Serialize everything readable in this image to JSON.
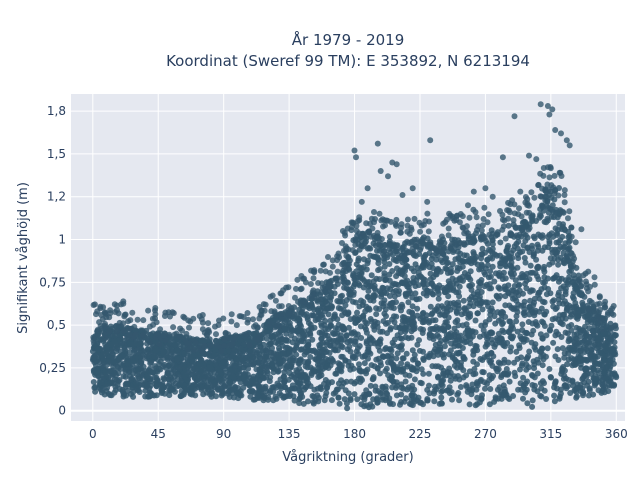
{
  "chart_data": {
    "type": "scatter",
    "title_line1": "År 1979 - 2019",
    "title_line2": "Koordinat (Sweref 99 TM): E 353892, N 6213194",
    "xlabel": "Vågriktning (grader)",
    "ylabel": "Signifikant våghöjd (m)",
    "xlim": [
      -15,
      366
    ],
    "ylim": [
      -0.06,
      1.85
    ],
    "x_ticks": [
      0,
      45,
      90,
      135,
      180,
      225,
      270,
      315,
      360
    ],
    "x_tick_labels": [
      "0",
      "45",
      "90",
      "135",
      "180",
      "225",
      "270",
      "315",
      "360"
    ],
    "y_ticks": [
      0,
      0.25,
      0.5,
      0.75,
      1.0,
      1.25,
      1.5,
      1.75
    ],
    "y_tick_labels": [
      "0",
      "0,25",
      "0,5",
      "0,75",
      "1",
      "1,2",
      "1,5",
      "1,8"
    ],
    "grid": true,
    "point_color": "#34586e",
    "plot_bg": "#e5e8f0",
    "envelope": {
      "x": [
        0,
        20,
        45,
        70,
        90,
        110,
        130,
        150,
        165,
        175,
        180,
        190,
        200,
        215,
        225,
        240,
        255,
        270,
        285,
        300,
        310,
        315,
        320,
        325,
        330,
        340,
        350,
        360
      ],
      "upper": [
        0.48,
        0.5,
        0.46,
        0.42,
        0.42,
        0.46,
        0.58,
        0.68,
        0.78,
        0.92,
        1.02,
        1.05,
        1.0,
        0.98,
        1.02,
        1.0,
        1.02,
        1.05,
        1.08,
        1.12,
        1.28,
        1.35,
        1.32,
        1.18,
        0.9,
        0.68,
        0.55,
        0.5
      ],
      "lower": [
        0.1,
        0.08,
        0.08,
        0.08,
        0.08,
        0.06,
        0.05,
        0.03,
        0.02,
        0.01,
        0.01,
        0.01,
        0.02,
        0.03,
        0.03,
        0.03,
        0.03,
        0.03,
        0.02,
        0.02,
        0.03,
        0.03,
        0.04,
        0.05,
        0.06,
        0.08,
        0.1,
        0.12
      ]
    },
    "outliers": [
      {
        "x": 3,
        "y": 0.58
      },
      {
        "x": 12,
        "y": 0.57
      },
      {
        "x": 22,
        "y": 0.56
      },
      {
        "x": 43,
        "y": 0.6
      },
      {
        "x": 60,
        "y": 0.48
      },
      {
        "x": 80,
        "y": 0.46
      },
      {
        "x": 112,
        "y": 0.5
      },
      {
        "x": 125,
        "y": 0.58
      },
      {
        "x": 150,
        "y": 0.74
      },
      {
        "x": 168,
        "y": 0.88
      },
      {
        "x": 172,
        "y": 1.05
      },
      {
        "x": 178,
        "y": 1.1
      },
      {
        "x": 180,
        "y": 1.52
      },
      {
        "x": 181,
        "y": 1.48
      },
      {
        "x": 185,
        "y": 1.22
      },
      {
        "x": 189,
        "y": 1.3
      },
      {
        "x": 196,
        "y": 1.56
      },
      {
        "x": 198,
        "y": 1.4
      },
      {
        "x": 203,
        "y": 1.37
      },
      {
        "x": 206,
        "y": 1.45
      },
      {
        "x": 209,
        "y": 1.44
      },
      {
        "x": 213,
        "y": 1.26
      },
      {
        "x": 220,
        "y": 1.3
      },
      {
        "x": 230,
        "y": 1.22
      },
      {
        "x": 232,
        "y": 1.58
      },
      {
        "x": 245,
        "y": 1.15
      },
      {
        "x": 258,
        "y": 1.2
      },
      {
        "x": 262,
        "y": 1.28
      },
      {
        "x": 270,
        "y": 1.3
      },
      {
        "x": 275,
        "y": 1.25
      },
      {
        "x": 282,
        "y": 1.48
      },
      {
        "x": 290,
        "y": 1.72
      },
      {
        "x": 294,
        "y": 1.28
      },
      {
        "x": 300,
        "y": 1.49
      },
      {
        "x": 305,
        "y": 1.47
      },
      {
        "x": 308,
        "y": 1.79
      },
      {
        "x": 313,
        "y": 1.78
      },
      {
        "x": 314,
        "y": 1.73
      },
      {
        "x": 316,
        "y": 1.76
      },
      {
        "x": 318,
        "y": 1.64
      },
      {
        "x": 322,
        "y": 1.62
      },
      {
        "x": 326,
        "y": 1.58
      },
      {
        "x": 328,
        "y": 1.55
      },
      {
        "x": 336,
        "y": 1.06
      },
      {
        "x": 345,
        "y": 0.78
      },
      {
        "x": 352,
        "y": 0.62
      },
      {
        "x": 358,
        "y": 0.56
      }
    ]
  }
}
